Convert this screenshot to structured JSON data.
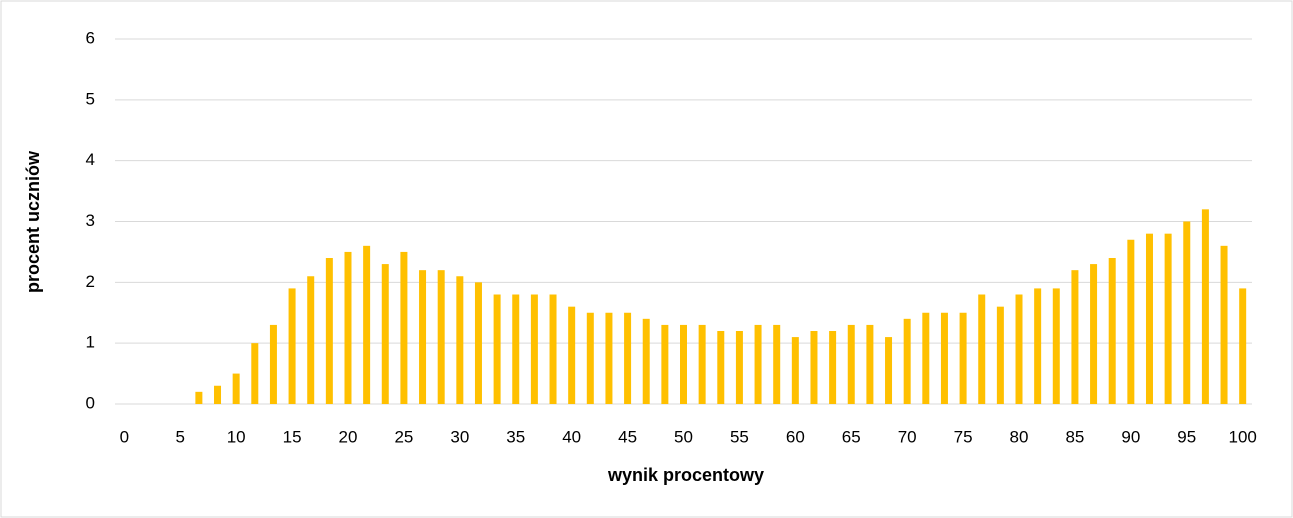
{
  "chart_data": {
    "type": "bar",
    "x_label": "wynik procentowy",
    "y_label": "procent uczniów",
    "categories": [
      "0",
      null,
      null,
      "5",
      null,
      null,
      "10",
      null,
      null,
      "15",
      null,
      null,
      "20",
      null,
      null,
      "25",
      null,
      null,
      "30",
      null,
      null,
      "35",
      null,
      null,
      "40",
      null,
      null,
      "45",
      null,
      null,
      "50",
      null,
      null,
      "55",
      null,
      null,
      "60",
      null,
      null,
      "65",
      null,
      null,
      "70",
      null,
      null,
      "75",
      null,
      null,
      "80",
      null,
      null,
      "85",
      null,
      null,
      "90",
      null,
      null,
      "95",
      null,
      null,
      "100"
    ],
    "values": [
      0,
      0,
      0,
      0,
      0.2,
      0.3,
      0.5,
      1.0,
      1.3,
      1.9,
      2.1,
      2.4,
      2.5,
      2.6,
      2.3,
      2.5,
      2.2,
      2.2,
      2.1,
      2.0,
      1.8,
      1.8,
      1.8,
      1.8,
      1.6,
      1.5,
      1.5,
      1.5,
      1.4,
      1.3,
      1.3,
      1.3,
      1.2,
      1.2,
      1.3,
      1.3,
      1.1,
      1.2,
      1.2,
      1.3,
      1.3,
      1.1,
      1.4,
      1.5,
      1.5,
      1.5,
      1.8,
      1.6,
      1.8,
      1.9,
      1.9,
      2.2,
      2.3,
      2.4,
      2.7,
      2.8,
      2.8,
      3.0,
      3.2,
      2.6,
      1.9
    ],
    "color": "#ffc000",
    "ylim": [
      0,
      6
    ],
    "yticks": [
      0,
      1,
      2,
      3,
      4,
      5,
      6
    ],
    "grid": true
  }
}
